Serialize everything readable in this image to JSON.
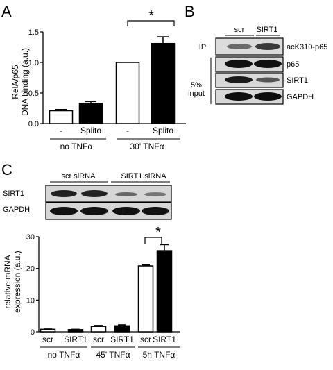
{
  "panels": {
    "A": {
      "letter": "A",
      "significance": "*",
      "bar_labels": [
        "-",
        "Splito",
        "-",
        "Splito"
      ],
      "group_labels": [
        "no TNFα",
        "30' TNFα"
      ],
      "ylabel_line1": "RelA/p65",
      "ylabel_line2": "DNA binding (a.u.)",
      "yticks": [
        "0.0",
        "0.5",
        "1.0",
        "1.5"
      ]
    },
    "B": {
      "letter": "B",
      "lanes": [
        "scr",
        "SIRT1"
      ],
      "ip_label": "IP",
      "input_label_line1": "5%",
      "input_label_line2": "input",
      "band_labels": [
        "acK310-p65",
        "p65",
        "SIRT1",
        "GAPDH"
      ]
    },
    "C": {
      "letter": "C",
      "blot_headers": [
        "scr siRNA",
        "SIRT1 siRNA"
      ],
      "blot_rows": [
        "SIRT1",
        "GAPDH"
      ],
      "significance": "*",
      "bar_labels": [
        "scr",
        "SIRT1",
        "scr",
        "SIRT1",
        "scr",
        "SIRT1"
      ],
      "group_labels": [
        "no TNFα",
        "45' TNFα",
        "5h TNFα"
      ],
      "ylabel_line1": "relative mRNA",
      "ylabel_line2": "expression (a.u.)",
      "yticks": [
        "0",
        "10",
        "20",
        "30"
      ]
    }
  },
  "chart_data": [
    {
      "type": "bar",
      "categories": [
        "no TNFα -",
        "no TNFα Splito",
        "30' TNFα -",
        "30' TNFα Splito"
      ],
      "values": [
        0.21,
        0.33,
        1.0,
        1.31
      ],
      "errors": [
        0.02,
        0.03,
        0.0,
        0.11
      ],
      "fills": [
        "#ffffff",
        "#000000",
        "#ffffff",
        "#000000"
      ],
      "ylabel": "RelA/p65 DNA binding (a.u.)",
      "ylim": [
        0,
        1.5
      ]
    },
    {
      "type": "bar",
      "categories": [
        "no TNFα scr",
        "no TNFα SIRT1",
        "45' TNFα scr",
        "45' TNFα SIRT1",
        "5h TNFα scr",
        "5h TNFα SIRT1"
      ],
      "values": [
        0.8,
        0.7,
        1.7,
        1.9,
        20.8,
        25.6
      ],
      "errors": [
        0.1,
        0.1,
        0.3,
        0.3,
        0.3,
        1.9
      ],
      "fills": [
        "#ffffff",
        "#000000",
        "#ffffff",
        "#000000",
        "#ffffff",
        "#000000"
      ],
      "ylabel": "relative mRNA expression (a.u.)",
      "ylim": [
        0,
        30
      ]
    }
  ]
}
